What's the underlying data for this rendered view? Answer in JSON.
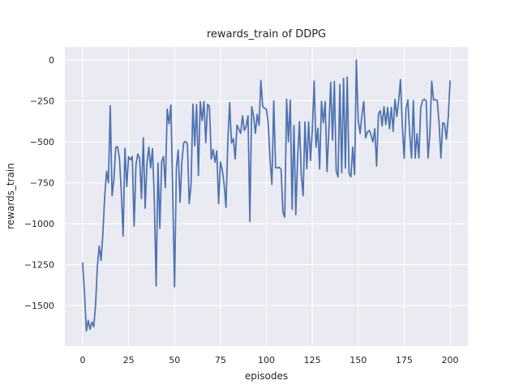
{
  "figure": {
    "title": "rewards_train of DDPG",
    "xlabel": "episodes",
    "ylabel": "rewards_train"
  },
  "colors": {
    "figure_bg": "#ffffff",
    "plot_bg": "#eaeaf2",
    "grid": "#ffffff",
    "line": "#4c72b0",
    "text": "#262626"
  },
  "chart_data": {
    "type": "line",
    "title": "rewards_train of DDPG",
    "xlabel": "episodes",
    "ylabel": "rewards_train",
    "legend": null,
    "grid": true,
    "x_start": 0,
    "x_step": 1,
    "xlim": [
      -9.7,
      209.7
    ],
    "ylim": [
      -1747,
      79
    ],
    "xticks": [
      0,
      25,
      50,
      75,
      100,
      125,
      150,
      175,
      200
    ],
    "yticks": [
      0,
      -250,
      -500,
      -750,
      -1000,
      -1250,
      -1500
    ],
    "xtick_labels": [
      "0",
      "25",
      "50",
      "75",
      "100",
      "125",
      "150",
      "175",
      "200"
    ],
    "ytick_labels": [
      "0",
      "−250",
      "−500",
      "−750",
      "−1000",
      "−1250",
      "−1500"
    ],
    "line_color": "#4c72b0",
    "line_width": 1.75,
    "values": [
      -1240,
      -1430,
      -1655,
      -1590,
      -1645,
      -1600,
      -1630,
      -1500,
      -1260,
      -1135,
      -1225,
      -1060,
      -830,
      -680,
      -750,
      -280,
      -829,
      -730,
      -533,
      -530,
      -600,
      -800,
      -1075,
      -540,
      -772,
      -591,
      -610,
      -590,
      -1015,
      -640,
      -574,
      -600,
      -846,
      -475,
      -905,
      -630,
      -533,
      -660,
      -541,
      -855,
      -1380,
      -630,
      -1028,
      -620,
      -590,
      -780,
      -300,
      -390,
      -275,
      -800,
      -1385,
      -660,
      -550,
      -870,
      -620,
      -505,
      -498,
      -512,
      -877,
      -760,
      -270,
      -525,
      -272,
      -705,
      -255,
      -370,
      -254,
      -505,
      -271,
      -285,
      -605,
      -547,
      -624,
      -555,
      -877,
      -624,
      -673,
      -760,
      -900,
      -500,
      -260,
      -507,
      -480,
      -605,
      -398,
      -423,
      -448,
      -341,
      -431,
      -406,
      -341,
      -986,
      -286,
      -341,
      -448,
      -332,
      -400,
      -125,
      -285,
      -295,
      -301,
      -390,
      -610,
      -760,
      -250,
      -657,
      -660,
      -655,
      -670,
      -930,
      -960,
      -240,
      -500,
      -245,
      -912,
      -401,
      -945,
      -600,
      -376,
      -700,
      -830,
      -379,
      -665,
      -379,
      -615,
      -430,
      -129,
      -533,
      -417,
      -665,
      -252,
      -384,
      -254,
      -682,
      -430,
      -137,
      -490,
      -132,
      -680,
      -714,
      -150,
      -690,
      -112,
      -660,
      -105,
      -690,
      -714,
      -533,
      -700,
      0,
      -368,
      -450,
      -337,
      -254,
      -475,
      -440,
      -430,
      -460,
      -500,
      -420,
      -648,
      -330,
      -310,
      -403,
      -285,
      -395,
      -290,
      -420,
      -290,
      -436,
      -240,
      -345,
      -250,
      -120,
      -400,
      -600,
      -300,
      -244,
      -450,
      -599,
      -248,
      -599,
      -450,
      -599,
      -293,
      -248,
      -240,
      -250,
      -599,
      -450,
      -130,
      -245,
      -242,
      -248,
      -384,
      -599,
      -384,
      -390,
      -483,
      -350,
      -129
    ]
  }
}
